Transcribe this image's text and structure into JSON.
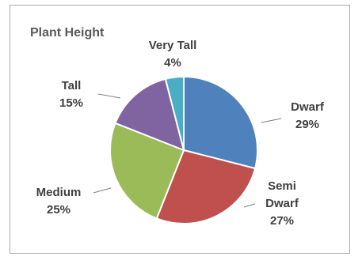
{
  "chart_data": {
    "type": "pie",
    "title": "Plant Height",
    "categories": [
      "Dwarf",
      "Semi Dwarf",
      "Medium",
      "Tall",
      "Very Tall"
    ],
    "values": [
      29,
      27,
      25,
      15,
      4
    ],
    "value_labels": [
      "29%",
      "27%",
      "25%",
      "15%",
      "4%"
    ],
    "label_lines": {
      "Dwarf": [
        "Dwarf"
      ],
      "Semi Dwarf": [
        "Semi",
        "Dwarf"
      ],
      "Medium": [
        "Medium"
      ],
      "Tall": [
        "Tall"
      ],
      "Very Tall": [
        "Very Tall"
      ]
    },
    "colors": [
      "#4f81bd",
      "#c0504d",
      "#9bbb59",
      "#8064a2",
      "#4bacc6"
    ],
    "start_angle_deg": 0,
    "direction": "clockwise",
    "legend": "none",
    "data_labels": "outside-with-leader-lines"
  }
}
